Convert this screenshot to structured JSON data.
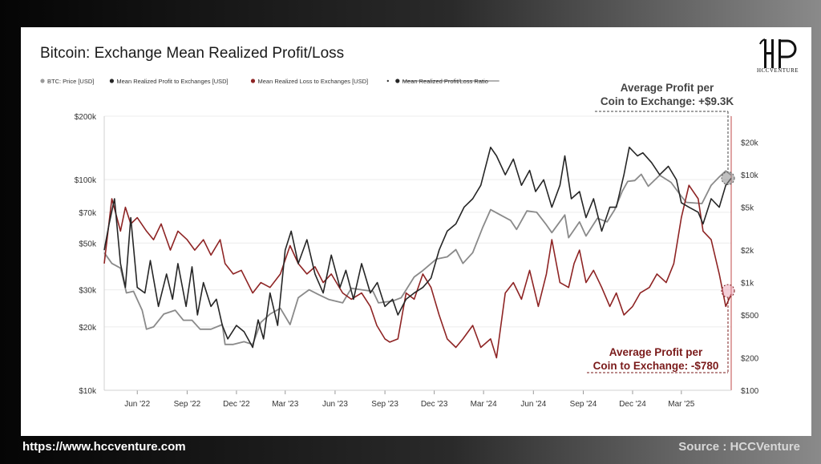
{
  "footer": {
    "url": "https://www.hccventure.com",
    "source": "Source : HCCVenture"
  },
  "brand": {
    "logo_glyph": "HC",
    "logo_text": "HCCVENTURE"
  },
  "colors": {
    "price": "#8a8a8a",
    "profit": "#262626",
    "loss": "#8e2424",
    "annotation_profit": "#444444",
    "annotation_loss": "#7a1a1a"
  },
  "chart_data": {
    "type": "line",
    "title": "Bitcoin: Exchange Mean Realized Profit/Loss",
    "legend_position": "top-left",
    "legend": [
      {
        "label": "BTC: Price [USD]",
        "color": "#9a9a9a"
      },
      {
        "label": "Mean Realized Profit to Exchanges [USD]",
        "color": "#262626"
      },
      {
        "label": "Mean Realized Loss to Exchanges [USD]",
        "color": "#8e2424"
      },
      {
        "label": "Mean Realized Profit/Loss Ratio",
        "color": "#262626",
        "strikethrough": true
      }
    ],
    "x_ticks": [
      "Jun '22",
      "Sep '22",
      "Dec '22",
      "Mar '23",
      "Jun '23",
      "Sep '23",
      "Dec '23",
      "Mar '24",
      "Jun '24",
      "Sep '24",
      "Dec '24",
      "Mar '25"
    ],
    "x_range": [
      "2022-04-01",
      "2025-06-01"
    ],
    "y_left": {
      "scale": "log",
      "range": [
        10000,
        200000
      ],
      "ticks": [
        {
          "value": 200000,
          "label": "$200k"
        },
        {
          "value": 100000,
          "label": "$100k"
        },
        {
          "value": 70000,
          "label": "$70k"
        },
        {
          "value": 50000,
          "label": "$50k"
        },
        {
          "value": 30000,
          "label": "$30k"
        },
        {
          "value": 20000,
          "label": "$20k"
        },
        {
          "value": 10000,
          "label": "$10k"
        }
      ]
    },
    "y_right": {
      "scale": "log",
      "range": [
        100,
        35000
      ],
      "ticks": [
        {
          "value": 20000,
          "label": "$20k"
        },
        {
          "value": 10000,
          "label": "$10k"
        },
        {
          "value": 5000,
          "label": "$5k"
        },
        {
          "value": 2000,
          "label": "$2k"
        },
        {
          "value": 1000,
          "label": "$1k"
        },
        {
          "value": 500,
          "label": "$500"
        },
        {
          "value": 200,
          "label": "$200"
        },
        {
          "value": 100,
          "label": "$100"
        }
      ]
    },
    "grid": true,
    "series": [
      {
        "name": "BTC: Price [USD]",
        "axis": "left",
        "x": [
          "2022-04-01",
          "2022-04-15",
          "2022-05-01",
          "2022-05-12",
          "2022-05-25",
          "2022-06-10",
          "2022-06-18",
          "2022-07-01",
          "2022-07-20",
          "2022-08-10",
          "2022-08-25",
          "2022-09-10",
          "2022-09-25",
          "2022-10-15",
          "2022-11-05",
          "2022-11-10",
          "2022-11-25",
          "2022-12-15",
          "2022-12-31",
          "2023-01-15",
          "2023-02-01",
          "2023-02-20",
          "2023-03-10",
          "2023-03-25",
          "2023-04-14",
          "2023-05-01",
          "2023-05-20",
          "2023-06-15",
          "2023-07-01",
          "2023-07-20",
          "2023-08-10",
          "2023-08-20",
          "2023-09-15",
          "2023-10-01",
          "2023-10-25",
          "2023-11-10",
          "2023-12-05",
          "2023-12-25",
          "2024-01-10",
          "2024-01-23",
          "2024-02-10",
          "2024-02-28",
          "2024-03-14",
          "2024-04-01",
          "2024-04-20",
          "2024-05-01",
          "2024-05-20",
          "2024-06-07",
          "2024-06-25",
          "2024-07-05",
          "2024-07-29",
          "2024-08-05",
          "2024-08-25",
          "2024-09-06",
          "2024-09-27",
          "2024-10-15",
          "2024-10-29",
          "2024-11-12",
          "2024-11-22",
          "2024-12-05",
          "2024-12-17",
          "2024-12-30",
          "2025-01-20",
          "2025-02-10",
          "2025-02-28",
          "2025-03-10",
          "2025-04-08",
          "2025-04-25",
          "2025-05-10",
          "2025-05-22",
          "2025-06-01"
        ],
        "values": [
          45000,
          40000,
          38000,
          29000,
          29500,
          24000,
          19500,
          20000,
          23000,
          24000,
          21500,
          21500,
          19500,
          19500,
          20500,
          16500,
          16500,
          17000,
          16500,
          21000,
          23000,
          24500,
          20500,
          27500,
          30000,
          28500,
          27000,
          26000,
          30500,
          30000,
          29500,
          26000,
          26500,
          27500,
          34500,
          37000,
          42000,
          43000,
          46500,
          40000,
          45000,
          59000,
          72000,
          68000,
          64000,
          58000,
          71000,
          70000,
          61000,
          56000,
          68000,
          53000,
          63000,
          54000,
          65500,
          63000,
          72000,
          88000,
          98000,
          99000,
          106000,
          93000,
          105000,
          97000,
          84000,
          78000,
          77000,
          94000,
          103000,
          110000,
          105000
        ]
      },
      {
        "name": "Mean Realized Profit to Exchanges [USD]",
        "axis": "right",
        "x": [
          "2022-04-01",
          "2022-04-10",
          "2022-04-20",
          "2022-05-01",
          "2022-05-10",
          "2022-05-20",
          "2022-06-01",
          "2022-06-15",
          "2022-06-25",
          "2022-07-10",
          "2022-07-25",
          "2022-08-05",
          "2022-08-15",
          "2022-08-30",
          "2022-09-10",
          "2022-09-20",
          "2022-10-01",
          "2022-10-15",
          "2022-10-25",
          "2022-11-05",
          "2022-11-15",
          "2022-12-01",
          "2022-12-15",
          "2022-12-31",
          "2023-01-10",
          "2023-01-20",
          "2023-02-01",
          "2023-02-15",
          "2023-03-01",
          "2023-03-12",
          "2023-03-25",
          "2023-04-10",
          "2023-04-25",
          "2023-05-10",
          "2023-05-25",
          "2023-06-10",
          "2023-06-21",
          "2023-07-05",
          "2023-07-20",
          "2023-08-05",
          "2023-08-18",
          "2023-09-01",
          "2023-09-15",
          "2023-09-25",
          "2023-10-10",
          "2023-10-25",
          "2023-11-10",
          "2023-11-25",
          "2023-12-10",
          "2023-12-25",
          "2024-01-10",
          "2024-01-25",
          "2024-02-10",
          "2024-02-25",
          "2024-03-14",
          "2024-03-25",
          "2024-04-10",
          "2024-04-25",
          "2024-05-10",
          "2024-05-25",
          "2024-06-05",
          "2024-06-20",
          "2024-07-05",
          "2024-07-20",
          "2024-07-29",
          "2024-08-10",
          "2024-08-25",
          "2024-09-06",
          "2024-09-20",
          "2024-10-05",
          "2024-10-20",
          "2024-11-01",
          "2024-11-15",
          "2024-11-25",
          "2024-12-10",
          "2024-12-20",
          "2025-01-05",
          "2025-01-20",
          "2025-02-05",
          "2025-02-20",
          "2025-03-01",
          "2025-03-15",
          "2025-04-01",
          "2025-04-10",
          "2025-04-25",
          "2025-05-10",
          "2025-05-22",
          "2025-06-01"
        ],
        "values": [
          2000,
          3500,
          6000,
          1500,
          900,
          4000,
          900,
          800,
          1600,
          600,
          1200,
          700,
          1500,
          600,
          1400,
          500,
          1000,
          600,
          700,
          400,
          300,
          400,
          350,
          250,
          450,
          300,
          800,
          400,
          2000,
          3000,
          1500,
          2500,
          1200,
          800,
          1800,
          900,
          1300,
          700,
          1500,
          800,
          1000,
          600,
          700,
          500,
          700,
          800,
          900,
          1100,
          2000,
          3000,
          3500,
          5000,
          6000,
          8000,
          18000,
          15000,
          10000,
          14000,
          8000,
          11000,
          7000,
          9000,
          5000,
          8000,
          15000,
          6000,
          7000,
          4000,
          6000,
          3000,
          5000,
          5000,
          10000,
          18000,
          15000,
          16000,
          13000,
          10000,
          12000,
          9000,
          5500,
          5000,
          4500,
          3500,
          6000,
          5000,
          8000,
          9300
        ]
      },
      {
        "name": "Mean Realized Loss to Exchanges [USD]",
        "axis": "right",
        "x": [
          "2022-04-01",
          "2022-04-15",
          "2022-05-01",
          "2022-05-10",
          "2022-05-20",
          "2022-06-01",
          "2022-06-18",
          "2022-07-01",
          "2022-07-15",
          "2022-08-01",
          "2022-08-15",
          "2022-09-01",
          "2022-09-15",
          "2022-10-01",
          "2022-10-15",
          "2022-11-01",
          "2022-11-10",
          "2022-11-25",
          "2022-12-10",
          "2022-12-31",
          "2023-01-15",
          "2023-02-01",
          "2023-02-20",
          "2023-03-10",
          "2023-03-25",
          "2023-04-10",
          "2023-04-25",
          "2023-05-10",
          "2023-05-25",
          "2023-06-15",
          "2023-07-01",
          "2023-07-20",
          "2023-08-05",
          "2023-08-17",
          "2023-09-01",
          "2023-09-10",
          "2023-09-25",
          "2023-10-10",
          "2023-10-25",
          "2023-11-10",
          "2023-11-25",
          "2023-12-10",
          "2023-12-25",
          "2024-01-10",
          "2024-01-23",
          "2024-02-10",
          "2024-02-25",
          "2024-03-14",
          "2024-03-25",
          "2024-04-10",
          "2024-04-25",
          "2024-05-10",
          "2024-05-25",
          "2024-06-10",
          "2024-06-25",
          "2024-07-05",
          "2024-07-20",
          "2024-08-05",
          "2024-08-15",
          "2024-08-25",
          "2024-09-06",
          "2024-09-20",
          "2024-10-05",
          "2024-10-20",
          "2024-11-01",
          "2024-11-15",
          "2024-12-01",
          "2024-12-15",
          "2025-01-01",
          "2025-01-15",
          "2025-02-01",
          "2025-02-15",
          "2025-03-01",
          "2025-03-15",
          "2025-04-01",
          "2025-04-10",
          "2025-04-25",
          "2025-05-10",
          "2025-05-22",
          "2025-06-01"
        ],
        "values": [
          1500,
          6000,
          3000,
          5000,
          3500,
          4000,
          3000,
          2500,
          3500,
          2000,
          3000,
          2500,
          2000,
          2500,
          1800,
          2500,
          1500,
          1200,
          1300,
          800,
          1000,
          900,
          1200,
          2200,
          1500,
          1200,
          1400,
          1000,
          1200,
          800,
          700,
          800,
          600,
          400,
          300,
          280,
          300,
          800,
          700,
          1200,
          900,
          500,
          300,
          250,
          300,
          400,
          250,
          300,
          200,
          800,
          1000,
          700,
          1300,
          600,
          1200,
          2500,
          1000,
          900,
          1500,
          2000,
          1000,
          1300,
          900,
          600,
          800,
          500,
          600,
          800,
          900,
          1200,
          1000,
          1500,
          4000,
          8000,
          6000,
          3000,
          2500,
          1200,
          600,
          780
        ]
      }
    ],
    "annotations": [
      {
        "line1": "Average Profit per",
        "line2": "Coin to Exchange: +$9.3K",
        "series": "Mean Realized Profit to Exchanges [USD]"
      },
      {
        "line1": "Average Profit per",
        "line2": "Coin to Exchange: -$780",
        "series": "Mean Realized Loss to Exchanges [USD]"
      }
    ]
  }
}
